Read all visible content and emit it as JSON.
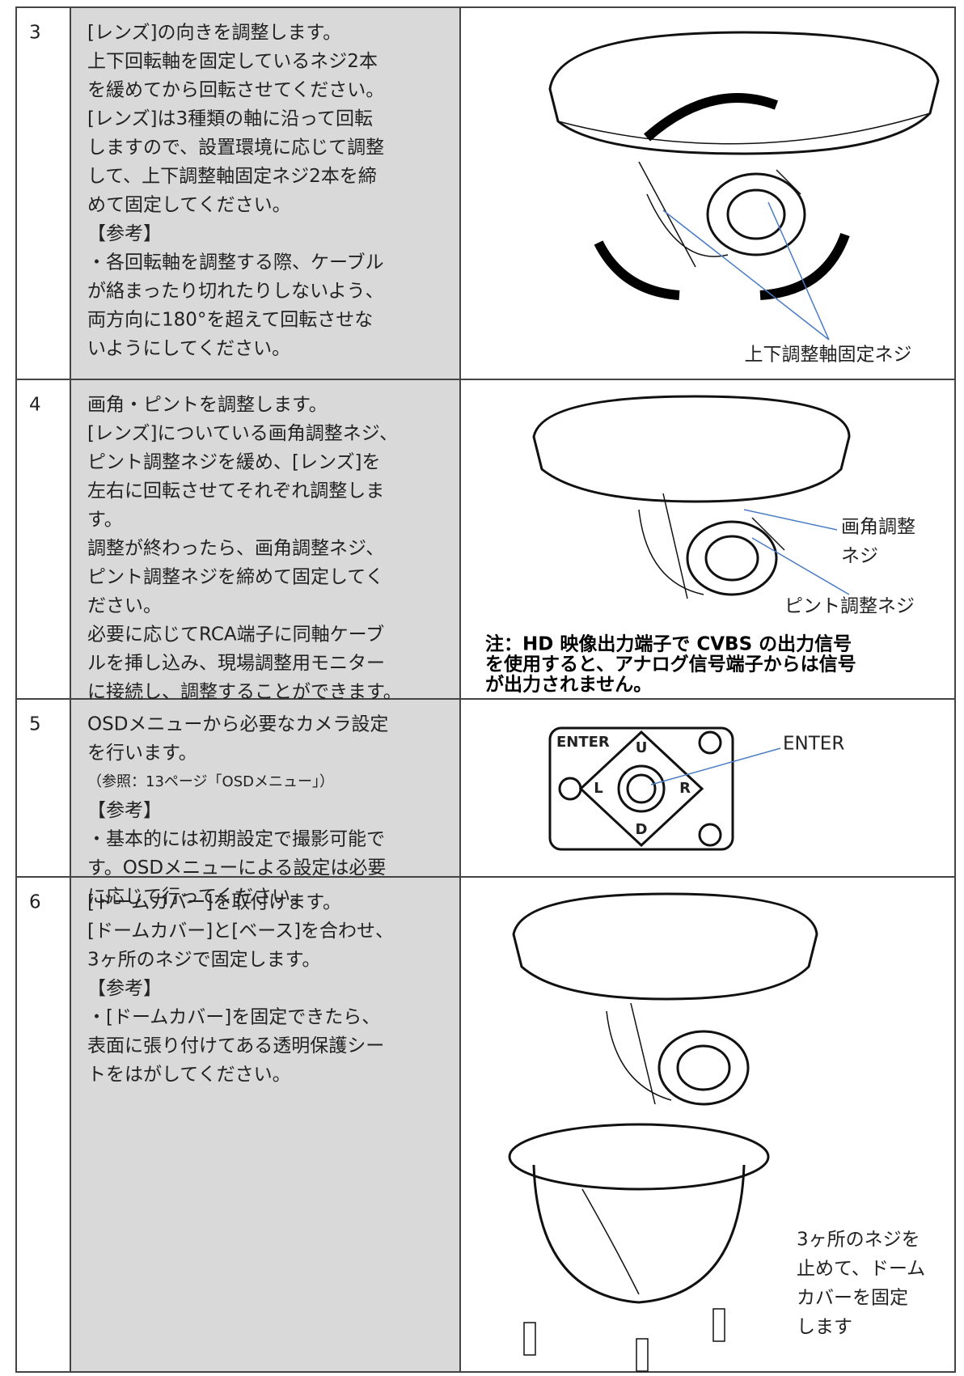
{
  "rows": [
    {
      "step": "3",
      "lines": [
        "[レンズ]の向きを調整します。",
        "上下回転軸を固定しているネジ2本",
        "を緩めてから回転させてください。",
        "[レンズ]は3種類の軸に沿って回転",
        "しますので、設置環境に応じて調整",
        "して、上下調整軸固定ネジ2本を締",
        "めて固定してください。",
        "【参考】",
        "・各回転軸を調整する際、ケーブル",
        "が絡まったり切れたりしないよう、",
        "両方向に180°を超えて回転させな",
        "いようにしてください。"
      ],
      "figure": {
        "label": "上下調整軸固定ネジ"
      }
    },
    {
      "step": "4",
      "lines": [
        "画角・ピントを調整します。",
        "[レンズ]についている画角調整ネジ、",
        "ピント調整ネジを緩め、[レンズ]を",
        "左右に回転させてそれぞれ調整しま",
        "す。",
        "調整が終わったら、画角調整ネジ、",
        "ピント調整ネジを締めて固定してく",
        "ださい。",
        "必要に応じてRCA端子に同軸ケーブ",
        "ルを挿し込み、現場調整用モニター",
        "に接続し、調整することができます。"
      ],
      "figure": {
        "labels": [
          "画角調整",
          "ネジ",
          "ピント調整ネジ"
        ],
        "note": [
          "注：HD 映像出力端子で CVBS の出力信号",
          "を使用すると、アナログ信号端子からは信号",
          "が出力されません。"
        ]
      }
    },
    {
      "step": "5",
      "lines": [
        "OSDメニューから必要なカメラ設定",
        "を行います。",
        "（参照：13ページ「OSDメニュー」）",
        "【参考】",
        "・基本的には初期設定で撮影可能で",
        "す。OSDメニューによる設定は必要",
        "に応じて行ってください。"
      ],
      "figure": {
        "label": "ENTER",
        "buttons": [
          "ENTER",
          "U",
          "L",
          "R",
          "D"
        ]
      }
    },
    {
      "step": "6",
      "lines": [
        "[ドームカバー]を取付けます。",
        "[ドームカバー]と[ベース]を合わせ、",
        "3ヶ所のネジで固定します。",
        "【参考】",
        "・[ドームカバー]を固定できたら、",
        "表面に張り付けてある透明保護シー",
        "トをはがしてください。"
      ],
      "figure": {
        "labels": [
          "3ヶ所のネジを",
          "止めて、ドーム",
          "カバーを固定",
          "します"
        ]
      }
    }
  ]
}
